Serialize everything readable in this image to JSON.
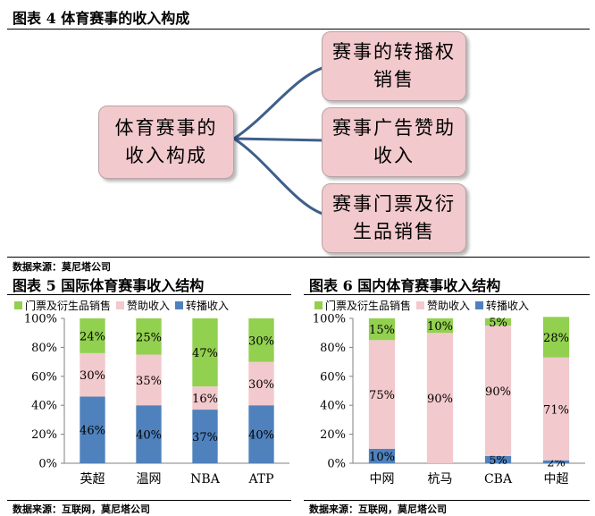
{
  "fig4": {
    "title": "图表 4  体育赛事的收入构成",
    "root": "体育赛事的收入构成",
    "root_lines": [
      "体育赛事的",
      "收入构成"
    ],
    "branches": [
      {
        "lines": [
          "赛事的转播权",
          "销售"
        ]
      },
      {
        "lines": [
          "赛事广告赞助",
          "收入"
        ]
      },
      {
        "lines": [
          "赛事门票及衍",
          "生品销售"
        ]
      }
    ],
    "source": "数据来源：莫尼塔公司"
  },
  "colors": {
    "ticket": "#92d050",
    "sponsor": "#f2c9cc",
    "broadcast": "#4f81bd",
    "connector": "#3e5f8a"
  },
  "chart_data": [
    {
      "type": "bar",
      "stacked": true,
      "title": "图表 5  国际体育赛事收入结构",
      "categories": [
        "英超",
        "温网",
        "NBA",
        "ATP"
      ],
      "series": [
        {
          "name": "转播收入",
          "color": "#4f81bd",
          "values": [
            46,
            40,
            37,
            40
          ]
        },
        {
          "name": "赞助收入",
          "color": "#f2c9cc",
          "values": [
            30,
            35,
            16,
            30
          ]
        },
        {
          "name": "门票及衍生品销售",
          "color": "#92d050",
          "values": [
            24,
            25,
            47,
            30
          ]
        }
      ],
      "legend_order": [
        "门票及衍生品销售",
        "赞助收入",
        "转播收入"
      ],
      "yticks": [
        "0%",
        "20%",
        "40%",
        "60%",
        "80%",
        "100%"
      ],
      "ylim": [
        0,
        100
      ],
      "legend": "top",
      "source": "数据来源：互联网，莫尼塔公司"
    },
    {
      "type": "bar",
      "stacked": true,
      "title": "图表 6  国内体育赛事收入结构",
      "categories": [
        "中网",
        "杭马",
        "CBA",
        "中超"
      ],
      "series": [
        {
          "name": "转播收入",
          "color": "#4f81bd",
          "values": [
            10,
            0,
            5,
            2
          ]
        },
        {
          "name": "赞助收入",
          "color": "#f2c9cc",
          "values": [
            75,
            90,
            90,
            71
          ]
        },
        {
          "name": "门票及衍生品销售",
          "color": "#92d050",
          "values": [
            15,
            10,
            5,
            28
          ]
        }
      ],
      "legend_order": [
        "门票及衍生品销售",
        "赞助收入",
        "转播收入"
      ],
      "yticks": [
        "0%",
        "20%",
        "40%",
        "60%",
        "80%",
        "100%"
      ],
      "ylim": [
        0,
        100
      ],
      "legend": "top",
      "source": "数据来源：互联网，莫尼塔公司"
    }
  ]
}
